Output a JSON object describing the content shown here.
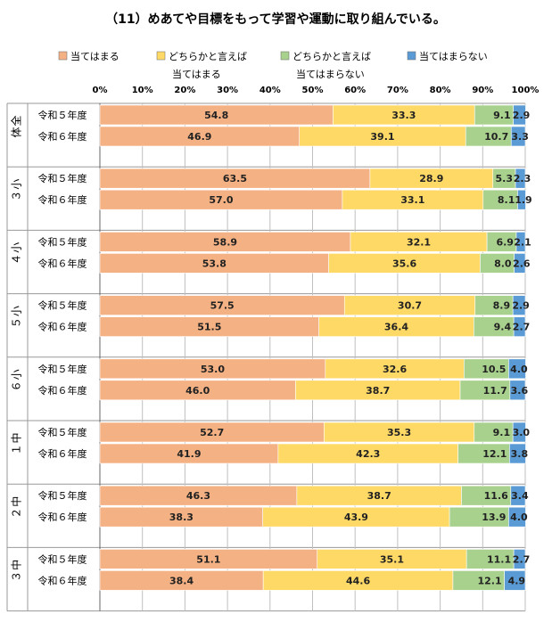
{
  "title": "（11）めあてや目標をもって学習や運動に取り組んでいる。",
  "colors": {
    "agree": "#f4b183",
    "somewhat_agree": "#ffd966",
    "somewhat_disagree": "#a9d18e",
    "disagree": "#5b9bd5",
    "grid": "#808080"
  },
  "chart_data": {
    "type": "bar",
    "orientation": "horizontal",
    "stacked": true,
    "percent": true,
    "title": "（11）めあてや目標をもって学習や運動に取り組んでいる。",
    "legend_position": "top",
    "legend": [
      "当てはまる",
      "どちらかと言えば",
      "どちらかと言えば",
      "当てはまらない"
    ],
    "legend_sub": [
      "",
      "当てはまる",
      "当てはまらない",
      ""
    ],
    "x_ticks": [
      "0%",
      "10%",
      "20%",
      "30%",
      "40%",
      "50%",
      "60%",
      "70%",
      "80%",
      "90%",
      "100%"
    ],
    "xlim": [
      0,
      100
    ],
    "grid": true,
    "groups": [
      {
        "label": "全体",
        "rows": [
          {
            "label": "令和５年度",
            "values": [
              54.8,
              33.3,
              9.1,
              2.9
            ]
          },
          {
            "label": "令和６年度",
            "values": [
              46.9,
              39.1,
              10.7,
              3.3
            ]
          }
        ]
      },
      {
        "label": "小３",
        "rows": [
          {
            "label": "令和５年度",
            "values": [
              63.5,
              28.9,
              5.3,
              2.3
            ]
          },
          {
            "label": "令和６年度",
            "values": [
              57.0,
              33.1,
              8.1,
              1.9
            ]
          }
        ]
      },
      {
        "label": "小４",
        "rows": [
          {
            "label": "令和５年度",
            "values": [
              58.9,
              32.1,
              6.9,
              2.1
            ]
          },
          {
            "label": "令和６年度",
            "values": [
              53.8,
              35.6,
              8.0,
              2.6
            ]
          }
        ]
      },
      {
        "label": "小５",
        "rows": [
          {
            "label": "令和５年度",
            "values": [
              57.5,
              30.7,
              8.9,
              2.9
            ]
          },
          {
            "label": "令和６年度",
            "values": [
              51.5,
              36.4,
              9.4,
              2.7
            ]
          }
        ]
      },
      {
        "label": "小６",
        "rows": [
          {
            "label": "令和５年度",
            "values": [
              53.0,
              32.6,
              10.5,
              4.0
            ]
          },
          {
            "label": "令和６年度",
            "values": [
              46.0,
              38.7,
              11.7,
              3.6
            ]
          }
        ]
      },
      {
        "label": "中１",
        "rows": [
          {
            "label": "令和５年度",
            "values": [
              52.7,
              35.3,
              9.1,
              3.0
            ]
          },
          {
            "label": "令和６年度",
            "values": [
              41.9,
              42.3,
              12.1,
              3.8
            ]
          }
        ]
      },
      {
        "label": "中２",
        "rows": [
          {
            "label": "令和５年度",
            "values": [
              46.3,
              38.7,
              11.6,
              3.4
            ]
          },
          {
            "label": "令和６年度",
            "values": [
              38.3,
              43.9,
              13.9,
              4.0
            ]
          }
        ]
      },
      {
        "label": "中３",
        "rows": [
          {
            "label": "令和５年度",
            "values": [
              51.1,
              35.1,
              11.1,
              2.7
            ]
          },
          {
            "label": "令和６年度",
            "values": [
              38.4,
              44.6,
              12.1,
              4.9
            ]
          }
        ]
      }
    ]
  }
}
